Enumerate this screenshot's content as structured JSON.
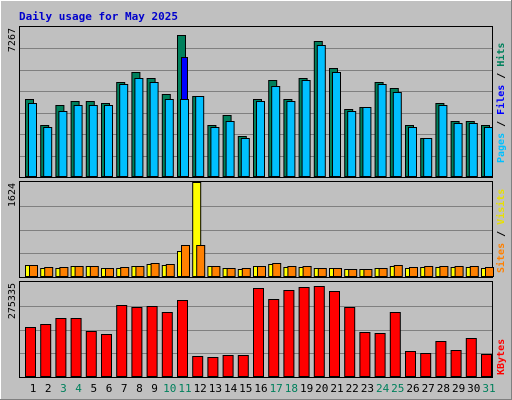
{
  "title": "Daily usage for May 2025",
  "colors": {
    "background": "#c0c0c0",
    "plot_bg": "#c0c0c0",
    "grid": "#808080",
    "title": "#0000cc",
    "hits": "#00805c",
    "files": "#0000ff",
    "pages": "#00c0ff",
    "visits": "#ffff00",
    "sites": "#ff8000",
    "kbytes": "#ff0000",
    "weekend_day": "#00805c",
    "weekday_day": "#000000"
  },
  "chart_data": [
    {
      "type": "bar",
      "panel": "hits_files_pages",
      "ymax_label": "7267",
      "ylim": [
        0,
        7267
      ],
      "right_labels": [
        "Pages",
        "Files",
        "Hits"
      ],
      "categories": [
        "1",
        "2",
        "3",
        "4",
        "5",
        "6",
        "7",
        "8",
        "9",
        "10",
        "11",
        "12",
        "13",
        "14",
        "15",
        "16",
        "17",
        "18",
        "19",
        "20",
        "21",
        "22",
        "23",
        "24",
        "25",
        "26",
        "27",
        "28",
        "29",
        "30",
        "31"
      ],
      "series": [
        {
          "name": "Hits",
          "values": [
            3800,
            2500,
            3500,
            3700,
            3700,
            3600,
            4600,
            5100,
            4800,
            4000,
            6900,
            3900,
            2500,
            3000,
            2000,
            3800,
            4700,
            3800,
            4800,
            6600,
            5300,
            3300,
            3400,
            4600,
            4300,
            2500,
            1900,
            3600,
            2700,
            2700,
            2500
          ]
        },
        {
          "name": "Files",
          "values": [
            2300,
            1600,
            2100,
            2200,
            2200,
            2200,
            2900,
            3100,
            3000,
            2400,
            5800,
            2400,
            1600,
            1800,
            1300,
            2300,
            2800,
            2300,
            2900,
            4100,
            3200,
            2100,
            2100,
            2800,
            2600,
            1600,
            1200,
            2200,
            1600,
            1600,
            1500
          ]
        },
        {
          "name": "Pages",
          "values": [
            3600,
            2400,
            3200,
            3500,
            3500,
            3500,
            4500,
            4800,
            4600,
            3800,
            3800,
            3900,
            2400,
            2700,
            1900,
            3700,
            4400,
            3700,
            4700,
            6400,
            5100,
            3200,
            3400,
            4500,
            4100,
            2400,
            1900,
            3500,
            2600,
            2600,
            2400
          ]
        }
      ]
    },
    {
      "type": "bar",
      "panel": "visits_sites",
      "ymax_label": "1624",
      "ylim": [
        0,
        1624
      ],
      "right_labels": [
        "Sites",
        "Visits"
      ],
      "categories": [
        "1",
        "2",
        "3",
        "4",
        "5",
        "6",
        "7",
        "8",
        "9",
        "10",
        "11",
        "12",
        "13",
        "14",
        "15",
        "16",
        "17",
        "18",
        "19",
        "20",
        "21",
        "22",
        "23",
        "24",
        "25",
        "26",
        "27",
        "28",
        "29",
        "30",
        "31"
      ],
      "series": [
        {
          "name": "Visits",
          "values": [
            200,
            160,
            160,
            180,
            180,
            150,
            160,
            180,
            220,
            200,
            450,
            1624,
            180,
            150,
            140,
            180,
            220,
            170,
            170,
            150,
            150,
            130,
            130,
            150,
            190,
            160,
            170,
            170,
            170,
            170,
            160
          ]
        },
        {
          "name": "Sites",
          "values": [
            210,
            170,
            170,
            190,
            190,
            160,
            170,
            190,
            240,
            230,
            540,
            550,
            190,
            160,
            150,
            190,
            240,
            180,
            180,
            160,
            160,
            140,
            140,
            160,
            210,
            170,
            180,
            180,
            180,
            180,
            170
          ]
        }
      ]
    },
    {
      "type": "bar",
      "panel": "kbytes",
      "ymax_label": "275335",
      "ylim": [
        0,
        275335
      ],
      "right_labels": [
        "KBytes"
      ],
      "categories": [
        "1",
        "2",
        "3",
        "4",
        "5",
        "6",
        "7",
        "8",
        "9",
        "10",
        "11",
        "12",
        "13",
        "14",
        "15",
        "16",
        "17",
        "18",
        "19",
        "20",
        "21",
        "22",
        "23",
        "24",
        "25",
        "26",
        "27",
        "28",
        "29",
        "30",
        "31"
      ],
      "series": [
        {
          "name": "KBytes",
          "values": [
            145000,
            153000,
            172000,
            170000,
            133000,
            125000,
            210000,
            204000,
            206000,
            188000,
            222000,
            61000,
            58000,
            63000,
            63000,
            258000,
            225000,
            252000,
            260000,
            265000,
            250000,
            203000,
            130000,
            127000,
            187000,
            74000,
            71000,
            103000,
            78000,
            114000,
            66000
          ]
        }
      ]
    }
  ],
  "day_labels": [
    {
      "text": "1",
      "weekend": false
    },
    {
      "text": "2",
      "weekend": false
    },
    {
      "text": "3",
      "weekend": true
    },
    {
      "text": "4",
      "weekend": true
    },
    {
      "text": "5",
      "weekend": false
    },
    {
      "text": "6",
      "weekend": false
    },
    {
      "text": "7",
      "weekend": false
    },
    {
      "text": "8",
      "weekend": false
    },
    {
      "text": "9",
      "weekend": false
    },
    {
      "text": "10",
      "weekend": true
    },
    {
      "text": "11",
      "weekend": true
    },
    {
      "text": "12",
      "weekend": false
    },
    {
      "text": "13",
      "weekend": false
    },
    {
      "text": "14",
      "weekend": false
    },
    {
      "text": "15",
      "weekend": false
    },
    {
      "text": "16",
      "weekend": false
    },
    {
      "text": "17",
      "weekend": true
    },
    {
      "text": "18",
      "weekend": true
    },
    {
      "text": "19",
      "weekend": false
    },
    {
      "text": "20",
      "weekend": false
    },
    {
      "text": "21",
      "weekend": false
    },
    {
      "text": "22",
      "weekend": false
    },
    {
      "text": "23",
      "weekend": false
    },
    {
      "text": "24",
      "weekend": true
    },
    {
      "text": "25",
      "weekend": true
    },
    {
      "text": "26",
      "weekend": false
    },
    {
      "text": "27",
      "weekend": false
    },
    {
      "text": "28",
      "weekend": false
    },
    {
      "text": "29",
      "weekend": false
    },
    {
      "text": "30",
      "weekend": false
    },
    {
      "text": "31",
      "weekend": true
    }
  ]
}
